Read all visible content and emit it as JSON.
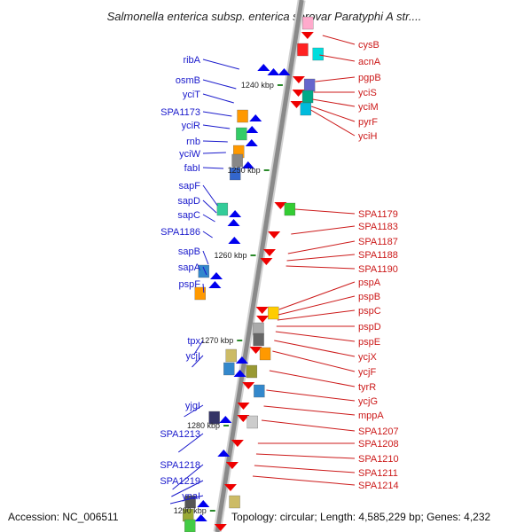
{
  "title": "Salmonella enterica subsp. enterica serovar Paratyphi A str....",
  "footer": {
    "accession": "Accession: NC_006511",
    "topology": "Topology: circular; Length: 4,585,229 bp; Genes: 4,232"
  },
  "colors": {
    "left_label": "#1a1acc",
    "right_label": "#cc1a1a",
    "backbone": "#8a8a8a",
    "tick": "#2a8a2a"
  },
  "kbp_marks": [
    "1240 kbp",
    "1250 kbp",
    "1260 kbp",
    "1270 kbp",
    "1280 kbp",
    "1290 kbp"
  ],
  "left_genes": [
    "ribA",
    "osmB",
    "yciT",
    "SPA1173",
    "yciR",
    "rnb",
    "yciW",
    "fabI",
    "sapF",
    "sapD",
    "sapC",
    "SPA1186",
    "sapB",
    "sapA",
    "pspF",
    "tpx",
    "ycjI",
    "yjgI",
    "SPA1213",
    "SPA1218",
    "SPA1219",
    "ynaI"
  ],
  "right_genes": [
    "cysB",
    "acnA",
    "pgpB",
    "yciS",
    "yciM",
    "pyrF",
    "yciH",
    "SPA1179",
    "SPA1183",
    "SPA1187",
    "SPA1188",
    "SPA1190",
    "pspA",
    "pspB",
    "pspC",
    "pspD",
    "pspE",
    "ycjX",
    "ycjF",
    "tyrR",
    "ycjG",
    "mppA",
    "SPA1207",
    "SPA1208",
    "SPA1210",
    "SPA1211",
    "SPA1214"
  ]
}
